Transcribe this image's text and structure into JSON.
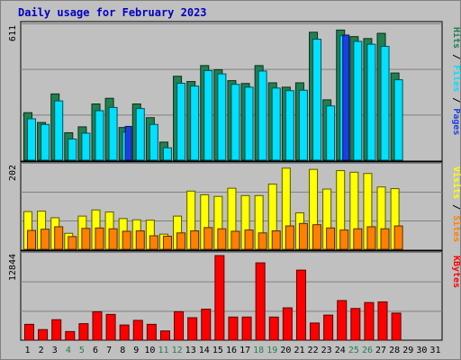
{
  "title": "Daily usage for February 2023",
  "chart_data": [
    {
      "type": "bar",
      "panel": "pages-files-hits",
      "x": [
        1,
        2,
        3,
        4,
        5,
        6,
        7,
        8,
        9,
        10,
        11,
        12,
        13,
        14,
        15,
        16,
        17,
        18,
        19,
        20,
        21,
        22,
        23,
        24,
        25,
        26,
        27,
        28
      ],
      "ymax_label": "611",
      "ylim": [
        0,
        611
      ],
      "side_labels": [
        "Pages",
        "Files",
        "Hits"
      ],
      "series": [
        {
          "name": "Hits",
          "color": "#208050",
          "values": [
            218,
            173,
            304,
            126,
            153,
            258,
            284,
            150,
            258,
            195,
            83,
            385,
            361,
            434,
            415,
            365,
            352,
            434,
            355,
            335,
            355,
            587,
            277,
            597,
            567,
            558,
            582,
            400
          ]
        },
        {
          "name": "Files",
          "color": "#00e0ff",
          "values": [
            190,
            164,
            272,
            97,
            124,
            227,
            242,
            129,
            237,
            164,
            57,
            353,
            340,
            411,
            396,
            348,
            335,
            409,
            331,
            319,
            321,
            555,
            249,
            571,
            545,
            532,
            522,
            369
          ]
        },
        {
          "name": "Pages",
          "color": "#1b3fe6",
          "values": [
            0,
            0,
            0,
            0,
            0,
            0,
            0,
            155,
            0,
            0,
            0,
            0,
            0,
            0,
            0,
            0,
            0,
            0,
            0,
            0,
            0,
            0,
            0,
            574,
            0,
            0,
            0,
            0
          ]
        }
      ]
    },
    {
      "type": "bar",
      "panel": "sites-visits",
      "x": [
        1,
        2,
        3,
        4,
        5,
        6,
        7,
        8,
        9,
        10,
        11,
        12,
        13,
        14,
        15,
        16,
        17,
        18,
        19,
        20,
        21,
        22,
        23,
        24,
        25,
        26,
        27,
        28
      ],
      "ymax_label": "202",
      "ylim": [
        0,
        202
      ],
      "side_labels": [
        "Sites",
        "Visits"
      ],
      "series": [
        {
          "name": "Visits",
          "color": "#ffff00",
          "values": [
            92,
            93,
            77,
            39,
            81,
            96,
            91,
            75,
            72,
            71,
            37,
            81,
            142,
            133,
            129,
            149,
            131,
            131,
            159,
            198,
            89,
            195,
            147,
            192,
            188,
            185,
            152,
            148
          ]
        },
        {
          "name": "Sites",
          "color": "#ff8000",
          "values": [
            46,
            49,
            55,
            31,
            51,
            52,
            50,
            44,
            45,
            33,
            32,
            40,
            45,
            53,
            50,
            44,
            47,
            40,
            45,
            57,
            63,
            60,
            52,
            47,
            50,
            55,
            50,
            57
          ]
        }
      ]
    },
    {
      "type": "bar",
      "panel": "kbytes",
      "x": [
        1,
        2,
        3,
        4,
        5,
        6,
        7,
        8,
        9,
        10,
        11,
        12,
        13,
        14,
        15,
        16,
        17,
        18,
        19,
        20,
        21,
        22,
        23,
        24,
        25,
        26,
        27,
        28
      ],
      "ymax_label": "12844",
      "ylim": [
        0,
        12844
      ],
      "side_labels": [
        "KBytes"
      ],
      "series": [
        {
          "name": "KBytes",
          "color": "#ff0000",
          "values": [
            2408,
            1607,
            3110,
            1311,
            2509,
            4313,
            3912,
            2308,
            3010,
            2409,
            1406,
            4313,
            3412,
            4714,
            12844,
            3513,
            3513,
            11741,
            3513,
            4914,
            10640,
            2609,
            3812,
            6017,
            4815,
            5716,
            5816,
            4113
          ]
        }
      ]
    }
  ],
  "x_axis_labels": [
    {
      "label": "1",
      "weekend": false
    },
    {
      "label": "2",
      "weekend": false
    },
    {
      "label": "3",
      "weekend": false
    },
    {
      "label": "4",
      "weekend": true
    },
    {
      "label": "5",
      "weekend": true
    },
    {
      "label": "6",
      "weekend": false
    },
    {
      "label": "7",
      "weekend": false
    },
    {
      "label": "8",
      "weekend": false
    },
    {
      "label": "9",
      "weekend": false
    },
    {
      "label": "10",
      "weekend": false
    },
    {
      "label": "11",
      "weekend": true
    },
    {
      "label": "12",
      "weekend": true
    },
    {
      "label": "13",
      "weekend": false
    },
    {
      "label": "14",
      "weekend": false
    },
    {
      "label": "15",
      "weekend": false
    },
    {
      "label": "16",
      "weekend": false
    },
    {
      "label": "17",
      "weekend": false
    },
    {
      "label": "18",
      "weekend": true
    },
    {
      "label": "19",
      "weekend": true
    },
    {
      "label": "20",
      "weekend": false
    },
    {
      "label": "21",
      "weekend": false
    },
    {
      "label": "22",
      "weekend": false
    },
    {
      "label": "23",
      "weekend": false
    },
    {
      "label": "24",
      "weekend": false
    },
    {
      "label": "25",
      "weekend": true
    },
    {
      "label": "26",
      "weekend": true
    },
    {
      "label": "27",
      "weekend": false
    },
    {
      "label": "28",
      "weekend": false
    },
    {
      "label": "29",
      "weekend": false
    },
    {
      "label": "30",
      "weekend": false
    },
    {
      "label": "31",
      "weekend": false
    }
  ],
  "colors": {
    "title": "#0000c0",
    "background": "#c0c0c0",
    "plot_bg": "#c0c0c0",
    "grid": "#808080",
    "weekday_label": "#000000",
    "weekend_label": "#208050",
    "separator": "#000000"
  }
}
